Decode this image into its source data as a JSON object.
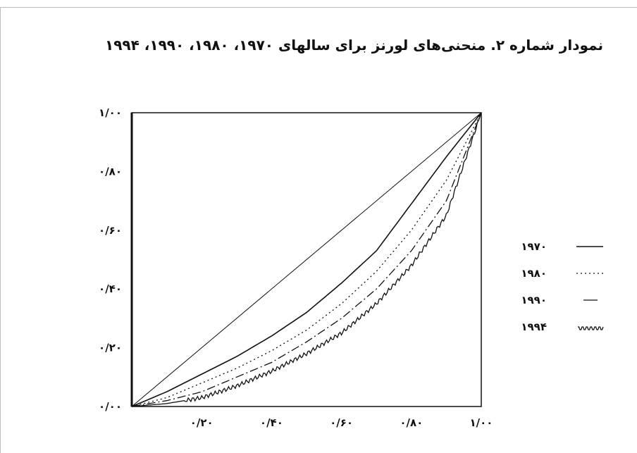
{
  "title": "نمودار شماره ۲. منحنی‌های لورنز برای سالهای ۱۹۷۰، ۱۹۸۰، ۱۹۹۰، ۱۹۹۴",
  "chart_data": {
    "type": "line",
    "title": "نمودار شماره ۲. منحنی‌های لورنز برای سالهای ۱۹۷۰، ۱۹۸۰، ۱۹۹۰، ۱۹۹۴",
    "xlabel": "",
    "ylabel": "",
    "xlim": [
      0,
      1
    ],
    "ylim": [
      0,
      1
    ],
    "x_ticks": [
      {
        "value": 0.2,
        "label": "۰/۲۰"
      },
      {
        "value": 0.4,
        "label": "۰/۴۰"
      },
      {
        "value": 0.6,
        "label": "۰/۶۰"
      },
      {
        "value": 0.8,
        "label": "۰/۸۰"
      },
      {
        "value": 1.0,
        "label": "۱/۰۰"
      }
    ],
    "y_ticks": [
      {
        "value": 0.0,
        "label": "۰/۰۰"
      },
      {
        "value": 0.2,
        "label": "۰/۲۰"
      },
      {
        "value": 0.4,
        "label": "۰/۴۰"
      },
      {
        "value": 0.6,
        "label": "۰/۶۰"
      },
      {
        "value": 0.8,
        "label": "۰/۸۰"
      },
      {
        "value": 1.0,
        "label": "۱/۰۰"
      }
    ],
    "grid": false,
    "legend_position": "right",
    "equality_line": {
      "x": [
        0,
        1
      ],
      "y": [
        0,
        1
      ]
    },
    "series": [
      {
        "name": "۱۹۷۰",
        "style": "solid",
        "x": [
          0,
          0.1,
          0.2,
          0.3,
          0.4,
          0.5,
          0.6,
          0.7,
          0.8,
          0.9,
          1.0
        ],
        "y": [
          0,
          0.05,
          0.11,
          0.17,
          0.24,
          0.32,
          0.42,
          0.53,
          0.69,
          0.85,
          1.0
        ]
      },
      {
        "name": "۱۹۸۰",
        "style": "dotted",
        "x": [
          0,
          0.1,
          0.2,
          0.3,
          0.4,
          0.5,
          0.6,
          0.7,
          0.8,
          0.9,
          1.0
        ],
        "y": [
          0,
          0.03,
          0.08,
          0.13,
          0.19,
          0.26,
          0.35,
          0.46,
          0.6,
          0.77,
          1.0
        ]
      },
      {
        "name": "۱۹۹۰",
        "style": "dashdot",
        "x": [
          0,
          0.1,
          0.2,
          0.3,
          0.4,
          0.5,
          0.6,
          0.7,
          0.8,
          0.9,
          1.0
        ],
        "y": [
          0,
          0.02,
          0.05,
          0.1,
          0.15,
          0.22,
          0.3,
          0.4,
          0.53,
          0.7,
          1.0
        ]
      },
      {
        "name": "۱۹۹۴",
        "style": "wavy",
        "x": [
          0,
          0.1,
          0.2,
          0.3,
          0.4,
          0.5,
          0.6,
          0.7,
          0.8,
          0.9,
          1.0
        ],
        "y": [
          0,
          0.01,
          0.03,
          0.07,
          0.12,
          0.18,
          0.25,
          0.35,
          0.48,
          0.65,
          1.0
        ]
      }
    ]
  },
  "colors": {
    "line": "#111111",
    "background": "#ffffff"
  }
}
